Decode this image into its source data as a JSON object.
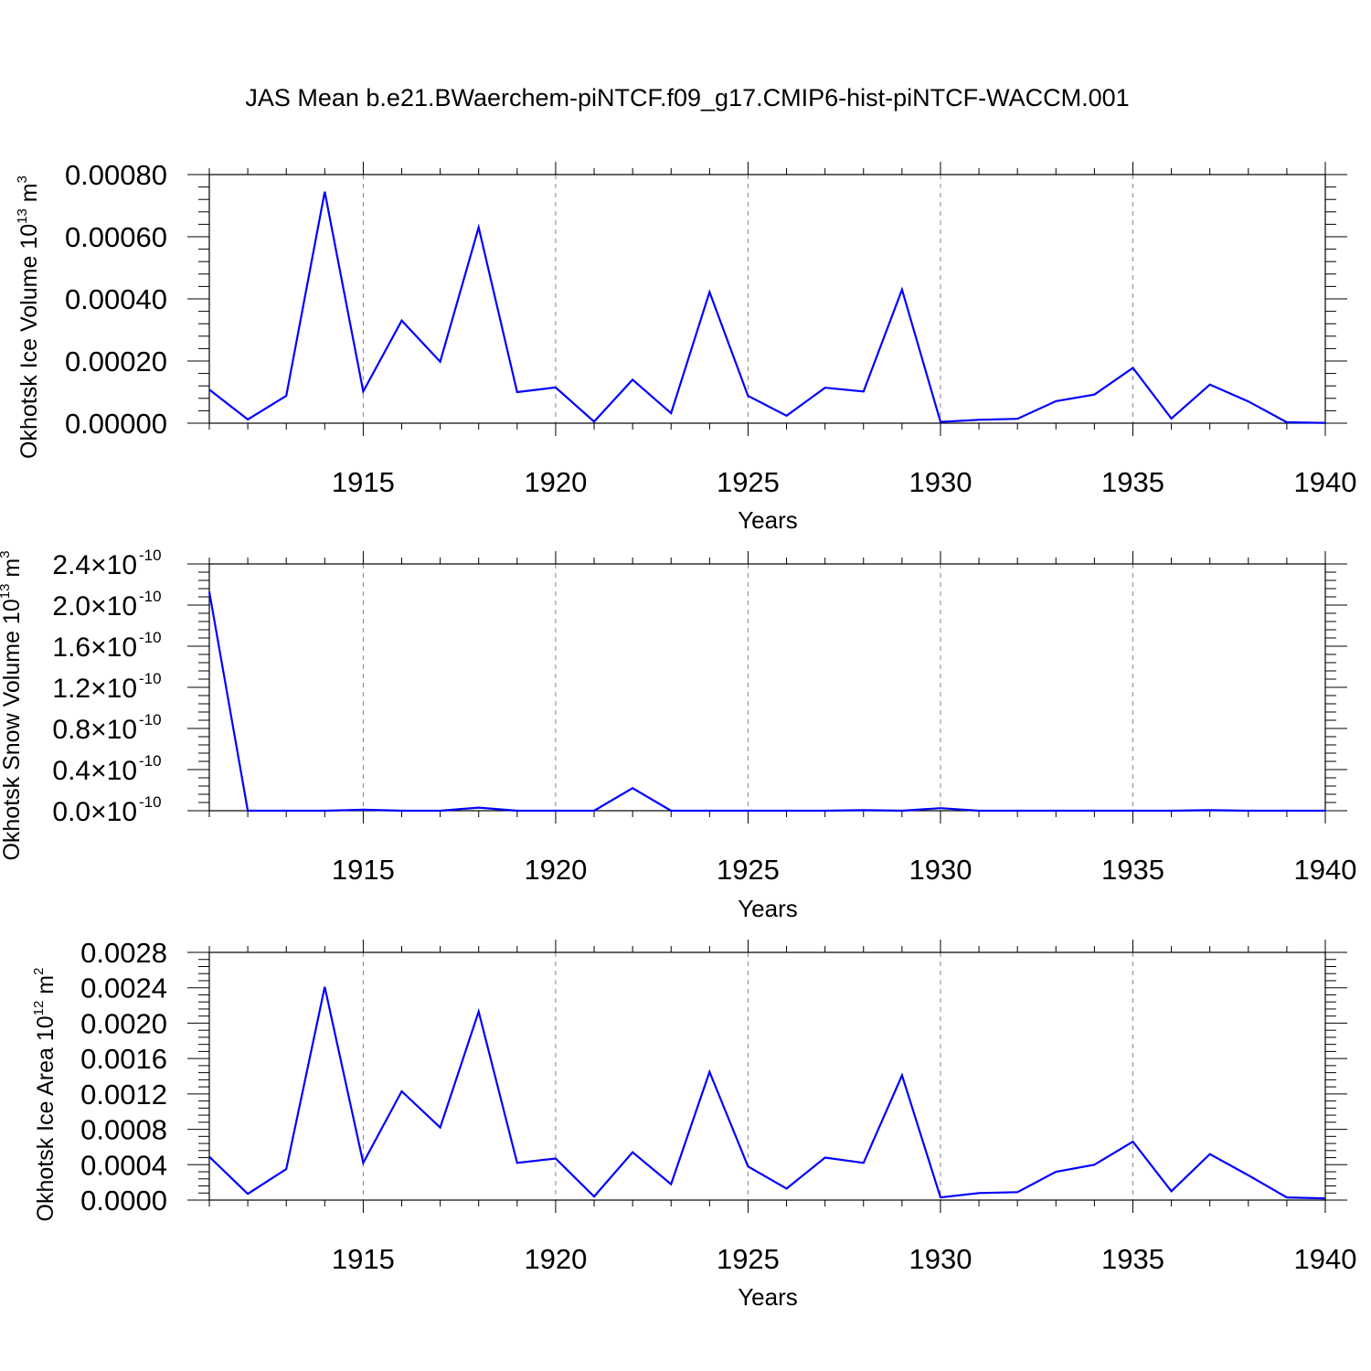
{
  "title": "JAS Mean b.e21.BWaerchem-piNTCF.f09_g17.CMIP6-hist-piNTCF-WACCM.001",
  "colors": {
    "line": "#0000ff",
    "axis": "#000000",
    "grid": "#888888"
  },
  "chart_data": [
    {
      "type": "line",
      "ylabel_main": "Okhotsk Ice Volume 10",
      "ylabel_exp": "13",
      "ylabel_unit": " m",
      "ylabel_unit_exp": "3",
      "xlabel": "Years",
      "xlim": [
        1911,
        1940
      ],
      "ylim": [
        0,
        0.0008
      ],
      "x_ticks": [
        "1915",
        "1920",
        "1925",
        "1930",
        "1935",
        "1940"
      ],
      "y_ticks": [
        "0.00000",
        "0.00020",
        "0.00040",
        "0.00060",
        "0.00080"
      ],
      "grid": "vertical dashed at labelled years",
      "x": [
        1911,
        1912,
        1913,
        1914,
        1915,
        1916,
        1917,
        1918,
        1919,
        1920,
        1921,
        1922,
        1923,
        1924,
        1925,
        1926,
        1927,
        1928,
        1929,
        1930,
        1931,
        1932,
        1933,
        1934,
        1935,
        1936,
        1937,
        1938,
        1939,
        1940
      ],
      "values": [
        0.000108,
        1.2e-05,
        8.8e-05,
        0.000745,
        0.000102,
        0.00033,
        0.000198,
        0.00063,
        0.0001,
        0.000115,
        5e-06,
        0.00014,
        3.2e-05,
        0.000422,
        8.8e-05,
        2.4e-05,
        0.000114,
        0.000102,
        0.00043,
        4e-06,
        1.1e-05,
        1.4e-05,
        7.1e-05,
        9.2e-05,
        0.000178,
        1.5e-05,
        0.000124,
        7e-05,
        3e-06,
        1e-06
      ]
    },
    {
      "type": "line",
      "ylabel_main": "Okhotsk Snow Volume 10",
      "ylabel_exp": "13",
      "ylabel_unit": " m",
      "ylabel_unit_exp": "3",
      "xlabel": "Years",
      "xlim": [
        1911,
        1940
      ],
      "ylim": [
        0,
        2.4
      ],
      "x_ticks": [
        "1915",
        "1920",
        "1925",
        "1930",
        "1935",
        "1940"
      ],
      "y_ticks": [
        "0.0",
        "0.4",
        "0.8",
        "1.2",
        "1.6",
        "2.0",
        "2.4"
      ],
      "y_tick_multiplier": "×10",
      "y_tick_exp": "-10",
      "grid": "vertical dashed at labelled years",
      "x": [
        1911,
        1912,
        1913,
        1914,
        1915,
        1916,
        1917,
        1918,
        1919,
        1920,
        1921,
        1922,
        1923,
        1924,
        1925,
        1926,
        1927,
        1928,
        1929,
        1930,
        1931,
        1932,
        1933,
        1934,
        1935,
        1936,
        1937,
        1938,
        1939,
        1940
      ],
      "values": [
        2.13,
        0.0,
        0.0,
        0.0,
        0.01,
        0.0,
        0.0,
        0.03,
        0.0,
        0.0,
        0.0,
        0.22,
        0.0,
        0.0,
        0.0,
        0.0,
        0.0,
        0.005,
        0.0,
        0.025,
        0.0,
        0.0,
        0.0,
        0.0,
        0.0,
        0.0,
        0.005,
        0.0,
        0.0,
        0.0
      ]
    },
    {
      "type": "line",
      "ylabel_main": "Okhotsk Ice Area 10",
      "ylabel_exp": "12",
      "ylabel_unit": " m",
      "ylabel_unit_exp": "2",
      "xlabel": "Years",
      "xlim": [
        1911,
        1940
      ],
      "ylim": [
        0,
        0.0028
      ],
      "x_ticks": [
        "1915",
        "1920",
        "1925",
        "1930",
        "1935",
        "1940"
      ],
      "y_ticks": [
        "0.0000",
        "0.0004",
        "0.0008",
        "0.0012",
        "0.0016",
        "0.0020",
        "0.0024",
        "0.0028"
      ],
      "grid": "vertical dashed at labelled years",
      "x": [
        1911,
        1912,
        1913,
        1914,
        1915,
        1916,
        1917,
        1918,
        1919,
        1920,
        1921,
        1922,
        1923,
        1924,
        1925,
        1926,
        1927,
        1928,
        1929,
        1930,
        1931,
        1932,
        1933,
        1934,
        1935,
        1936,
        1937,
        1938,
        1939,
        1940
      ],
      "values": [
        0.00049,
        7e-05,
        0.00035,
        0.00241,
        0.00042,
        0.00123,
        0.00082,
        0.00213,
        0.00042,
        0.00047,
        4e-05,
        0.00054,
        0.00018,
        0.00145,
        0.00038,
        0.00013,
        0.00048,
        0.00042,
        0.00141,
        3e-05,
        8e-05,
        9e-05,
        0.00032,
        0.0004,
        0.00066,
        0.0001,
        0.00052,
        0.00028,
        3e-05,
        2e-05
      ]
    }
  ]
}
